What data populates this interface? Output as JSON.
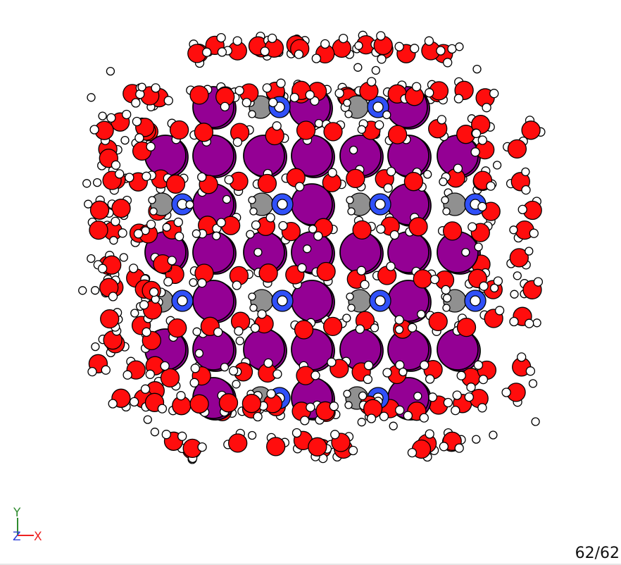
{
  "viewer": {
    "frame_counter": "62/62",
    "atom_colors": {
      "oxygen": "#ff0d0d",
      "hydrogen": "#ffffff",
      "iodine": "#940094",
      "nitrogen": "#3050f8",
      "carbon": "#909090",
      "outline": "#000000"
    },
    "axes": {
      "y_label": "Y",
      "z_label": "Z",
      "x_label": "X",
      "y_color": "#2e8b2e",
      "z_color": "#2b3fd9",
      "x_color": "#ee2222"
    }
  }
}
